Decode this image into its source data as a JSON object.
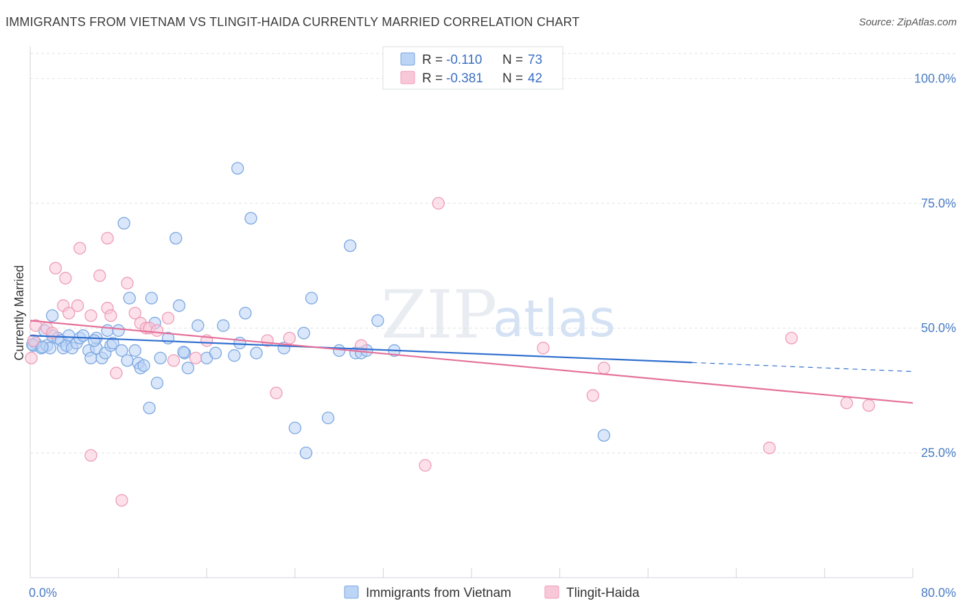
{
  "title": "IMMIGRANTS FROM VIETNAM VS TLINGIT-HAIDA CURRENTLY MARRIED CORRELATION CHART",
  "source": "Source: ZipAtlas.com",
  "watermark": {
    "zip": "ZIP",
    "atlas": "atlas"
  },
  "colors": {
    "blue_fill": "#bcd4f5",
    "blue_stroke": "#7aa6e0",
    "blue_line": "#2f6fcf",
    "pink_fill": "#f9c8d8",
    "pink_stroke": "#ee9bb6",
    "pink_line": "#e4709a",
    "axis_text": "#4a7cc4",
    "grid": "#dde1e6"
  },
  "legend_top": [
    {
      "r_label": "R =",
      "r_value": "-0.110",
      "n_label": "N =",
      "n_value": "73",
      "color": "blue"
    },
    {
      "r_label": "R =",
      "r_value": "-0.381",
      "n_label": "N =",
      "n_value": "42",
      "color": "pink"
    }
  ],
  "chart_data": {
    "type": "scatter",
    "title": "IMMIGRANTS FROM VIETNAM VS TLINGIT-HAIDA CURRENTLY MARRIED CORRELATION CHART",
    "xlabel": "",
    "ylabel": "Currently Married",
    "xlim": [
      0,
      80
    ],
    "ylim": [
      0,
      105
    ],
    "x_tick_labels": [
      "0.0%",
      "80.0%"
    ],
    "y_ticks": [
      25,
      50,
      75,
      100
    ],
    "y_tick_labels": [
      "25.0%",
      "50.0%",
      "75.0%",
      "100.0%"
    ],
    "grid": "horizontal-dashed",
    "legend_position": "top-center",
    "series": [
      {
        "name": "Immigrants from Vietnam",
        "color": "blue",
        "trend": {
          "x0": 0,
          "y0": 48.5,
          "x1": 60,
          "y1": 43.1,
          "dash_to_x": 80,
          "dash_to_y": 41.3
        },
        "points": [
          [
            0.3,
            46.5
          ],
          [
            0.5,
            47
          ],
          [
            1.0,
            46
          ],
          [
            1.3,
            49.5
          ],
          [
            1.5,
            46.5
          ],
          [
            1.8,
            46
          ],
          [
            2.0,
            48.5
          ],
          [
            2.0,
            52.5
          ],
          [
            2.5,
            48
          ],
          [
            2.8,
            47.5
          ],
          [
            3.0,
            46
          ],
          [
            3.3,
            46.5
          ],
          [
            3.5,
            48.5
          ],
          [
            3.8,
            46
          ],
          [
            4.2,
            47
          ],
          [
            4.5,
            48
          ],
          [
            4.8,
            48.5
          ],
          [
            5.3,
            45.5
          ],
          [
            5.5,
            44
          ],
          [
            6.0,
            46
          ],
          [
            6.0,
            48
          ],
          [
            6.5,
            44
          ],
          [
            6.8,
            45
          ],
          [
            7.0,
            49.5
          ],
          [
            7.3,
            46.5
          ],
          [
            7.5,
            47
          ],
          [
            8.0,
            49.5
          ],
          [
            8.3,
            45.5
          ],
          [
            8.5,
            71
          ],
          [
            8.8,
            43.5
          ],
          [
            9.0,
            56
          ],
          [
            9.5,
            45.5
          ],
          [
            9.8,
            43
          ],
          [
            10.0,
            42
          ],
          [
            10.3,
            42.5
          ],
          [
            10.8,
            34
          ],
          [
            11.0,
            56
          ],
          [
            11.3,
            51
          ],
          [
            11.5,
            39
          ],
          [
            11.8,
            44
          ],
          [
            12.5,
            48
          ],
          [
            13.2,
            68
          ],
          [
            13.5,
            54.5
          ],
          [
            14.0,
            45
          ],
          [
            14.3,
            42
          ],
          [
            15.2,
            50.5
          ],
          [
            16.0,
            44
          ],
          [
            16.8,
            45
          ],
          [
            17.5,
            50.5
          ],
          [
            18.5,
            44.5
          ],
          [
            18.8,
            82
          ],
          [
            19.0,
            47
          ],
          [
            19.5,
            53
          ],
          [
            20.0,
            72
          ],
          [
            20.5,
            45
          ],
          [
            23.0,
            46
          ],
          [
            24.0,
            30
          ],
          [
            24.8,
            49
          ],
          [
            25.0,
            25
          ],
          [
            25.5,
            56
          ],
          [
            27.0,
            32
          ],
          [
            28.0,
            45.5
          ],
          [
            29.0,
            66.5
          ],
          [
            29.5,
            45
          ],
          [
            30.0,
            45
          ],
          [
            30.5,
            45.5
          ],
          [
            31.5,
            51.5
          ],
          [
            33.0,
            45.5
          ],
          [
            52.0,
            28.5
          ],
          [
            0.2,
            46.7
          ],
          [
            1.1,
            46.2
          ],
          [
            5.8,
            47.5
          ],
          [
            13.9,
            45.2
          ]
        ]
      },
      {
        "name": "Tlingit-Haida",
        "color": "pink",
        "trend": {
          "x0": 0,
          "y0": 51.5,
          "x1": 80,
          "y1": 35.0
        },
        "points": [
          [
            0.1,
            44
          ],
          [
            0.5,
            50.5
          ],
          [
            1.5,
            50
          ],
          [
            2.0,
            49
          ],
          [
            2.3,
            62
          ],
          [
            3.0,
            54.5
          ],
          [
            3.2,
            60
          ],
          [
            3.5,
            53
          ],
          [
            4.3,
            54.5
          ],
          [
            4.5,
            66
          ],
          [
            5.5,
            52.5
          ],
          [
            5.5,
            24.5
          ],
          [
            6.3,
            60.5
          ],
          [
            7.0,
            54
          ],
          [
            7.0,
            68
          ],
          [
            7.3,
            52.5
          ],
          [
            7.8,
            41
          ],
          [
            8.3,
            15.5
          ],
          [
            8.8,
            59
          ],
          [
            9.5,
            53
          ],
          [
            10.0,
            51
          ],
          [
            10.5,
            50
          ],
          [
            10.8,
            50
          ],
          [
            11.5,
            49.5
          ],
          [
            12.5,
            52
          ],
          [
            13.0,
            43.5
          ],
          [
            15.0,
            44
          ],
          [
            16.0,
            47.5
          ],
          [
            21.5,
            47.5
          ],
          [
            22.3,
            37
          ],
          [
            23.5,
            48
          ],
          [
            30.0,
            46.5
          ],
          [
            35.8,
            22.5
          ],
          [
            37.0,
            75
          ],
          [
            46.5,
            46
          ],
          [
            51.0,
            36.5
          ],
          [
            52.0,
            42
          ],
          [
            67.0,
            26
          ],
          [
            69.0,
            48
          ],
          [
            74.0,
            35
          ],
          [
            76.0,
            34.5
          ],
          [
            0.3,
            47.5
          ]
        ]
      }
    ]
  },
  "bottom_legend": [
    {
      "label": "Immigrants from Vietnam",
      "color": "blue"
    },
    {
      "label": "Tlingit-Haida",
      "color": "pink"
    }
  ]
}
